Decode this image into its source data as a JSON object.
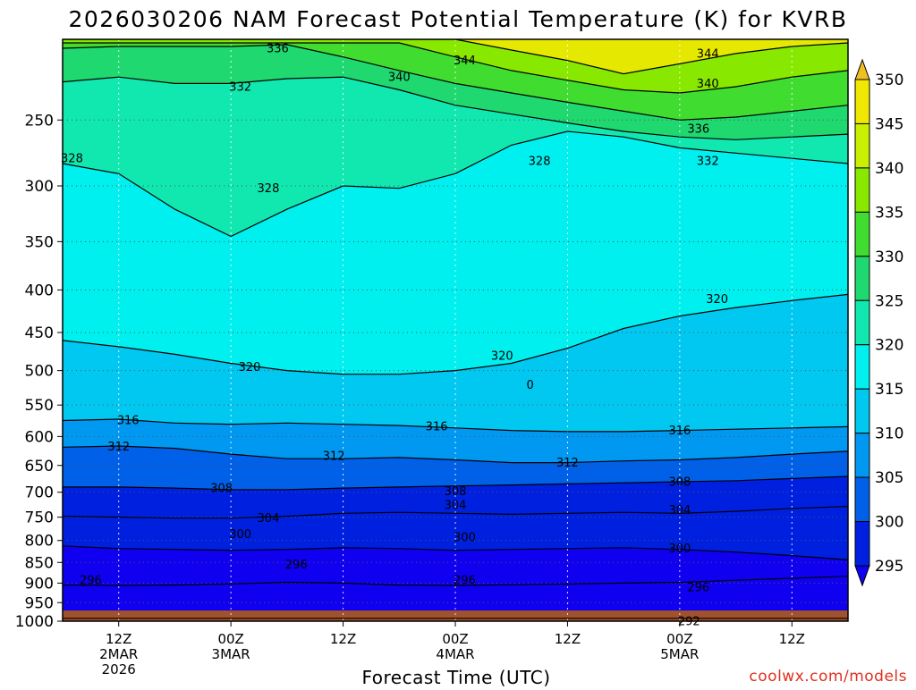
{
  "chart_data": {
    "type": "heatmap",
    "title": "2026030206 NAM Forecast Potential Temperature (K) for KVRB",
    "xlabel": "Forecast Time (UTC)",
    "ylabel": "",
    "watermark": "coolwx.com/models",
    "y_axis": {
      "scale": "log-pressure",
      "direction": "reversed",
      "range": [
        1000,
        200
      ],
      "ticks": [
        250,
        300,
        350,
        400,
        450,
        500,
        550,
        600,
        650,
        700,
        750,
        800,
        850,
        900,
        950,
        1000
      ]
    },
    "x_axis": {
      "range_hours": [
        0,
        84
      ],
      "ticks": [
        {
          "hour": 6,
          "lines": [
            "12Z",
            "2MAR",
            "2026"
          ]
        },
        {
          "hour": 18,
          "lines": [
            "00Z",
            "3MAR"
          ]
        },
        {
          "hour": 30,
          "lines": [
            "12Z"
          ]
        },
        {
          "hour": 42,
          "lines": [
            "00Z",
            "4MAR"
          ]
        },
        {
          "hour": 54,
          "lines": [
            "12Z"
          ]
        },
        {
          "hour": 66,
          "lines": [
            "00Z",
            "5MAR"
          ]
        },
        {
          "hour": 78,
          "lines": [
            "12Z"
          ]
        }
      ]
    },
    "grid": true,
    "colorbar": {
      "placement": "right",
      "levels": [
        350,
        345,
        340,
        335,
        330,
        325,
        320,
        315,
        310,
        305,
        300,
        295
      ],
      "colors": [
        "#f0e800",
        "#c8f000",
        "#88e800",
        "#40dc30",
        "#20d870",
        "#10e8b0",
        "#00f0f0",
        "#00c8f0",
        "#0098f0",
        "#0060e8",
        "#0020e0",
        "#1000f0"
      ]
    },
    "ground_color": "#a0522d",
    "contour_series": [
      {
        "name": "292",
        "values": [
          992,
          992,
          992,
          992,
          992,
          992,
          992,
          992,
          992,
          992,
          992,
          992,
          992,
          992,
          992
        ]
      },
      {
        "name": "296",
        "values": [
          905,
          906,
          905,
          902,
          898,
          900,
          905,
          906,
          904,
          902,
          900,
          898,
          893,
          888,
          883
        ]
      },
      {
        "name": "300",
        "values": [
          812,
          818,
          820,
          822,
          820,
          816,
          818,
          822,
          820,
          818,
          816,
          820,
          826,
          834,
          844
        ]
      },
      {
        "name": "304",
        "values": [
          748,
          750,
          752,
          752,
          748,
          742,
          740,
          742,
          744,
          742,
          740,
          742,
          738,
          732,
          728
        ]
      },
      {
        "name": "308",
        "values": [
          690,
          690,
          692,
          695,
          695,
          692,
          690,
          688,
          686,
          684,
          682,
          680,
          678,
          674,
          670
        ]
      },
      {
        "name": "312",
        "values": [
          618,
          616,
          620,
          630,
          638,
          638,
          636,
          640,
          645,
          645,
          642,
          640,
          636,
          630,
          625
        ]
      },
      {
        "name": "316",
        "values": [
          574,
          572,
          578,
          580,
          578,
          580,
          582,
          586,
          590,
          592,
          592,
          590,
          588,
          586,
          584
        ]
      },
      {
        "name": "320",
        "values": [
          460,
          468,
          478,
          490,
          500,
          505,
          505,
          500,
          490,
          470,
          445,
          430,
          420,
          412,
          405
        ]
      },
      {
        "name": "328",
        "values": [
          282,
          290,
          320,
          345,
          320,
          300,
          302,
          290,
          268,
          258,
          262,
          270,
          274,
          278,
          282
        ]
      },
      {
        "name": "332",
        "values": [
          225,
          222,
          226,
          226,
          223,
          222,
          230,
          240,
          246,
          252,
          258,
          262,
          264,
          262,
          260
        ]
      },
      {
        "name": "336",
        "values": [
          205,
          204,
          204,
          204,
          203,
          210,
          218,
          226,
          232,
          238,
          244,
          250,
          248,
          244,
          240
        ]
      },
      {
        "name": "340",
        "values": [
          202,
          202,
          202,
          202,
          202,
          202,
          202,
          210,
          218,
          224,
          230,
          232,
          228,
          222,
          218
        ]
      },
      {
        "name": "344",
        "values": [
          200,
          200,
          200,
          200,
          200,
          200,
          200,
          200,
          206,
          212,
          220,
          214,
          208,
          204,
          202
        ]
      }
    ],
    "contour_hours": [
      0,
      6,
      12,
      18,
      24,
      30,
      36,
      42,
      48,
      54,
      60,
      66,
      72,
      78,
      84
    ],
    "contour_labels": [
      {
        "text": "336",
        "hour": 23,
        "p": 205
      },
      {
        "text": "344",
        "hour": 43,
        "p": 212
      },
      {
        "text": "340",
        "hour": 36,
        "p": 222
      },
      {
        "text": "344",
        "hour": 69,
        "p": 208
      },
      {
        "text": "340",
        "hour": 69,
        "p": 226
      },
      {
        "text": "332",
        "hour": 19,
        "p": 228
      },
      {
        "text": "336",
        "hour": 68,
        "p": 256
      },
      {
        "text": "328",
        "hour": 1,
        "p": 278
      },
      {
        "text": "328",
        "hour": 51,
        "p": 280
      },
      {
        "text": "332",
        "hour": 69,
        "p": 280
      },
      {
        "text": "328",
        "hour": 22,
        "p": 302
      },
      {
        "text": "320",
        "hour": 70,
        "p": 410
      },
      {
        "text": "320",
        "hour": 47,
        "p": 480
      },
      {
        "text": "320",
        "hour": 20,
        "p": 495
      },
      {
        "text": "0",
        "hour": 50,
        "p": 520
      },
      {
        "text": "316",
        "hour": 7,
        "p": 573
      },
      {
        "text": "316",
        "hour": 40,
        "p": 583
      },
      {
        "text": "316",
        "hour": 66,
        "p": 590
      },
      {
        "text": "312",
        "hour": 6,
        "p": 617
      },
      {
        "text": "312",
        "hour": 29,
        "p": 633
      },
      {
        "text": "312",
        "hour": 54,
        "p": 645
      },
      {
        "text": "308",
        "hour": 17,
        "p": 692
      },
      {
        "text": "308",
        "hour": 42,
        "p": 698
      },
      {
        "text": "308",
        "hour": 66,
        "p": 680
      },
      {
        "text": "304",
        "hour": 42,
        "p": 725
      },
      {
        "text": "304",
        "hour": 22,
        "p": 752
      },
      {
        "text": "304",
        "hour": 66,
        "p": 735
      },
      {
        "text": "300",
        "hour": 19,
        "p": 786
      },
      {
        "text": "300",
        "hour": 43,
        "p": 793
      },
      {
        "text": "300",
        "hour": 66,
        "p": 818
      },
      {
        "text": "296",
        "hour": 25,
        "p": 855
      },
      {
        "text": "296",
        "hour": 3,
        "p": 892
      },
      {
        "text": "296",
        "hour": 43,
        "p": 892
      },
      {
        "text": "296",
        "hour": 68,
        "p": 910
      },
      {
        "text": "292",
        "hour": 67,
        "p": 1000
      }
    ]
  }
}
